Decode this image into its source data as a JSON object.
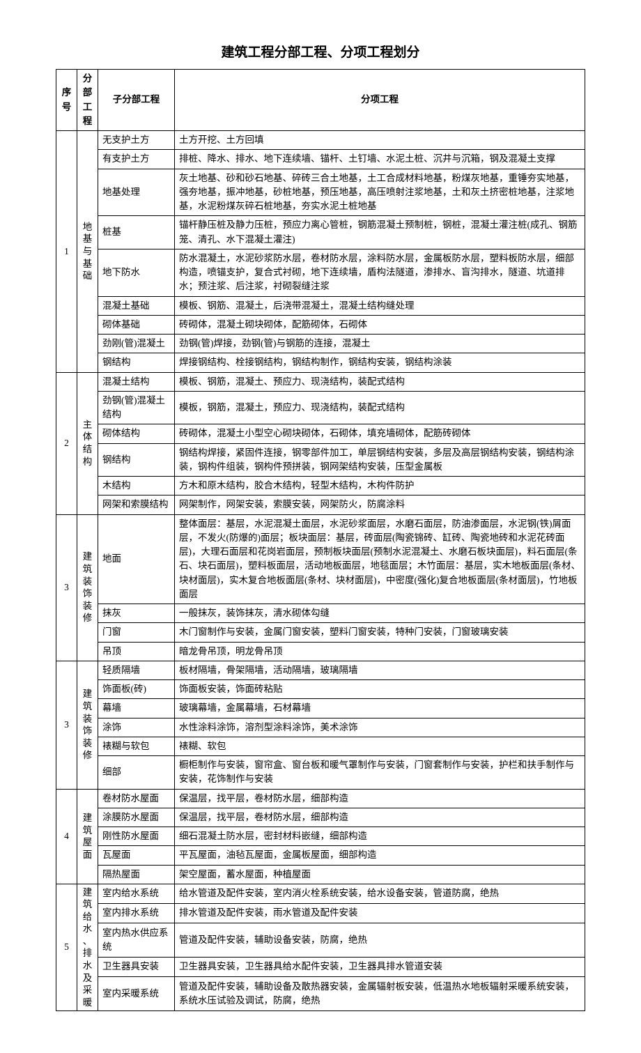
{
  "title": "建筑工程分部工程、分项工程划分",
  "headers": {
    "seq": "序号",
    "division": "分部工程",
    "sub": "子分部工程",
    "item": "分项工程"
  },
  "sections": [
    {
      "seq": "1",
      "division": "地基与基础",
      "rows": [
        {
          "sub": "无支护土方",
          "item": "土方开挖、土方回填"
        },
        {
          "sub": "有支护土方",
          "item": "排桩、降水、排水、地下连续墙、锚杆、土钉墙、水泥土桩、沉井与沉箱，钢及混凝土支撑"
        },
        {
          "sub": "地基处理",
          "item": "灰土地基、砂和砂石地基、碎砖三合土地基，土工合成材料地基，粉煤灰地基，重锤夯实地基，强夯地基，振冲地基，砂桩地基，预压地基，高压喷射注浆地基，土和灰土挤密桩地基，注浆地基，水泥粉煤灰碎石桩地基，夯实水泥土桩地基"
        },
        {
          "sub": "桩基",
          "item": "锚杆静压桩及静力压桩，预应力离心管桩，钢筋混凝土预制桩，钢桩，混凝土灌注桩(成孔、钢筋笼、清孔、水下混凝土灌注)"
        },
        {
          "sub": "地下防水",
          "item": "防水混凝土，水泥砂浆防水层，卷材防水层，涂料防水层，金属板防水层，塑料板防水层，细部构造，喷锚支护，复合式衬砌，地下连续墙，盾构法隧道，渗排水、盲沟排水，隧道、坑道排水；预注浆、后注浆，衬砌裂缝注浆"
        },
        {
          "sub": "混凝土基础",
          "item": "模板、钢筋、混凝土，后浇带混凝土，混凝土结构缝处理"
        },
        {
          "sub": "砌体基础",
          "item": "砖砌体，混凝土砌块砌体，配筋砌体，石砌体"
        },
        {
          "sub": "劲刚(管)混凝土",
          "item": "劲钢(管)焊接，劲钢(管)与钢筋的连接，混凝土"
        },
        {
          "sub": "钢结构",
          "item": "焊接钢结构、栓接钢结构，钢结构制作，钢结构安装，钢结构涂装"
        }
      ]
    },
    {
      "seq": "2",
      "division": "主体结构",
      "rows": [
        {
          "sub": "混凝土结构",
          "item": "模板、钢筋，混凝土、预应力、现浇结构，装配式结构"
        },
        {
          "sub": "劲钢(管)混凝土结构",
          "item": "模板，钢筋，混凝土，预应力、现浇结构，装配式结构"
        },
        {
          "sub": "砌体结构",
          "item": "砖砌体，混凝土小型空心砌块砌体，石砌体，填充墙砌体，配筋砖砌体"
        },
        {
          "sub": "钢结构",
          "item": "钢结构焊接，紧固件连接，钢零部件加工，单层钢结构安装，多层及高层钢结构安装，钢结构涂装，钢构件组装，钢构件预拼装，钢网架结构安装，压型金属板"
        },
        {
          "sub": "木结构",
          "item": "方木和原木结构，胶合木结构，轻型木结构，木构件防护"
        },
        {
          "sub": "网架和索膜结构",
          "item": "网架制作，网架安装，索膜安装，网架防火，防腐涂料"
        }
      ]
    },
    {
      "seq": "3",
      "division": "建筑装饰装修",
      "rows": [
        {
          "sub": "地面",
          "item": "整体面层：基层，水泥混凝土面层，水泥砂浆面层，水磨石面层，防油渗面层，水泥钢(铁)屑面层，不发火(防爆的)面层；板块面层：基层，砖面层(陶瓷锦砖、缸砖、陶瓷地砖和水泥花砖面层)，大理石面层和花岗岩面层，预制板块面层(预制水泥混凝土、水磨石板块面层)，料石面层(条石、块石面层)，塑料板面层，活动地板面层，地毯面层；木竹面层：基层，实木地板面层(条材、块材面层)，实木复合地板面层(条材、块材面层)，中密度(强化)复合地板面层(条材面层)，竹地板面层"
        },
        {
          "sub": "抹灰",
          "item": "一般抹灰，装饰抹灰，清水砌体勾缝"
        },
        {
          "sub": "门窗",
          "item": "木门窗制作与安装，金属门窗安装，塑料门窗安装，特种门安装，门窗玻璃安装"
        },
        {
          "sub": "吊顶",
          "item": "暗龙骨吊顶，明龙骨吊顶"
        }
      ]
    },
    {
      "seq": "3",
      "division": "建筑装饰装修",
      "rows": [
        {
          "sub": "轻质隔墙",
          "item": "板材隔墙，骨架隔墙，活动隔墙，玻璃隔墙"
        },
        {
          "sub": "饰面板(砖)",
          "item": "饰面板安装，饰面砖粘贴"
        },
        {
          "sub": "幕墙",
          "item": "玻璃幕墙，金属幕墙，石材幕墙"
        },
        {
          "sub": "涂饰",
          "item": "水性涂料涂饰，溶剂型涂料涂饰，美术涂饰"
        },
        {
          "sub": "裱糊与软包",
          "item": "裱糊、软包"
        },
        {
          "sub": "细部",
          "item": "橱柜制作与安装，窗帘盒、窗台板和暖气罩制作与安装，门窗套制作与安装，护栏和扶手制作与安装，花饰制作与安装"
        }
      ]
    },
    {
      "seq": "4",
      "division": "建筑屋面",
      "rows": [
        {
          "sub": "卷材防水屋面",
          "item": "保温层，找平层，卷材防水层，细部构造"
        },
        {
          "sub": "涂膜防水屋面",
          "item": "保温层，找平层，卷材防水层，细部构造"
        },
        {
          "sub": "刚性防水屋面",
          "item": "细石混凝土防水层，密封材料嵌缝，细部构造"
        },
        {
          "sub": "瓦屋面",
          "item": "平瓦屋面，油毡瓦屋面，金属板屋面，细部构造"
        },
        {
          "sub": "隔热屋面",
          "item": "架空屋面，蓄水屋面，种植屋面"
        }
      ]
    },
    {
      "seq": "5",
      "division": "建筑给水、排水及采暖",
      "rows": [
        {
          "sub": "室内给水系统",
          "item": "给水管道及配件安装，室内消火栓系统安装，给水设备安装，管道防腐，绝热"
        },
        {
          "sub": "室内排水系统",
          "item": "排水管道及配件安装，雨水管道及配件安装"
        },
        {
          "sub": "室内热水供应系统",
          "item": "管道及配件安装，辅助设备安装，防腐，绝热"
        },
        {
          "sub": "卫生器具安装",
          "item": "卫生器具安装，卫生器具给水配件安装，卫生器具排水管道安装"
        },
        {
          "sub": "室内采暖系统",
          "item": "管道及配件安装，辅助设备及散热器安装，金属辐射板安装，低温热水地板辐射采暖系统安装，系统水压试验及调试，防腐，绝热"
        }
      ]
    }
  ]
}
